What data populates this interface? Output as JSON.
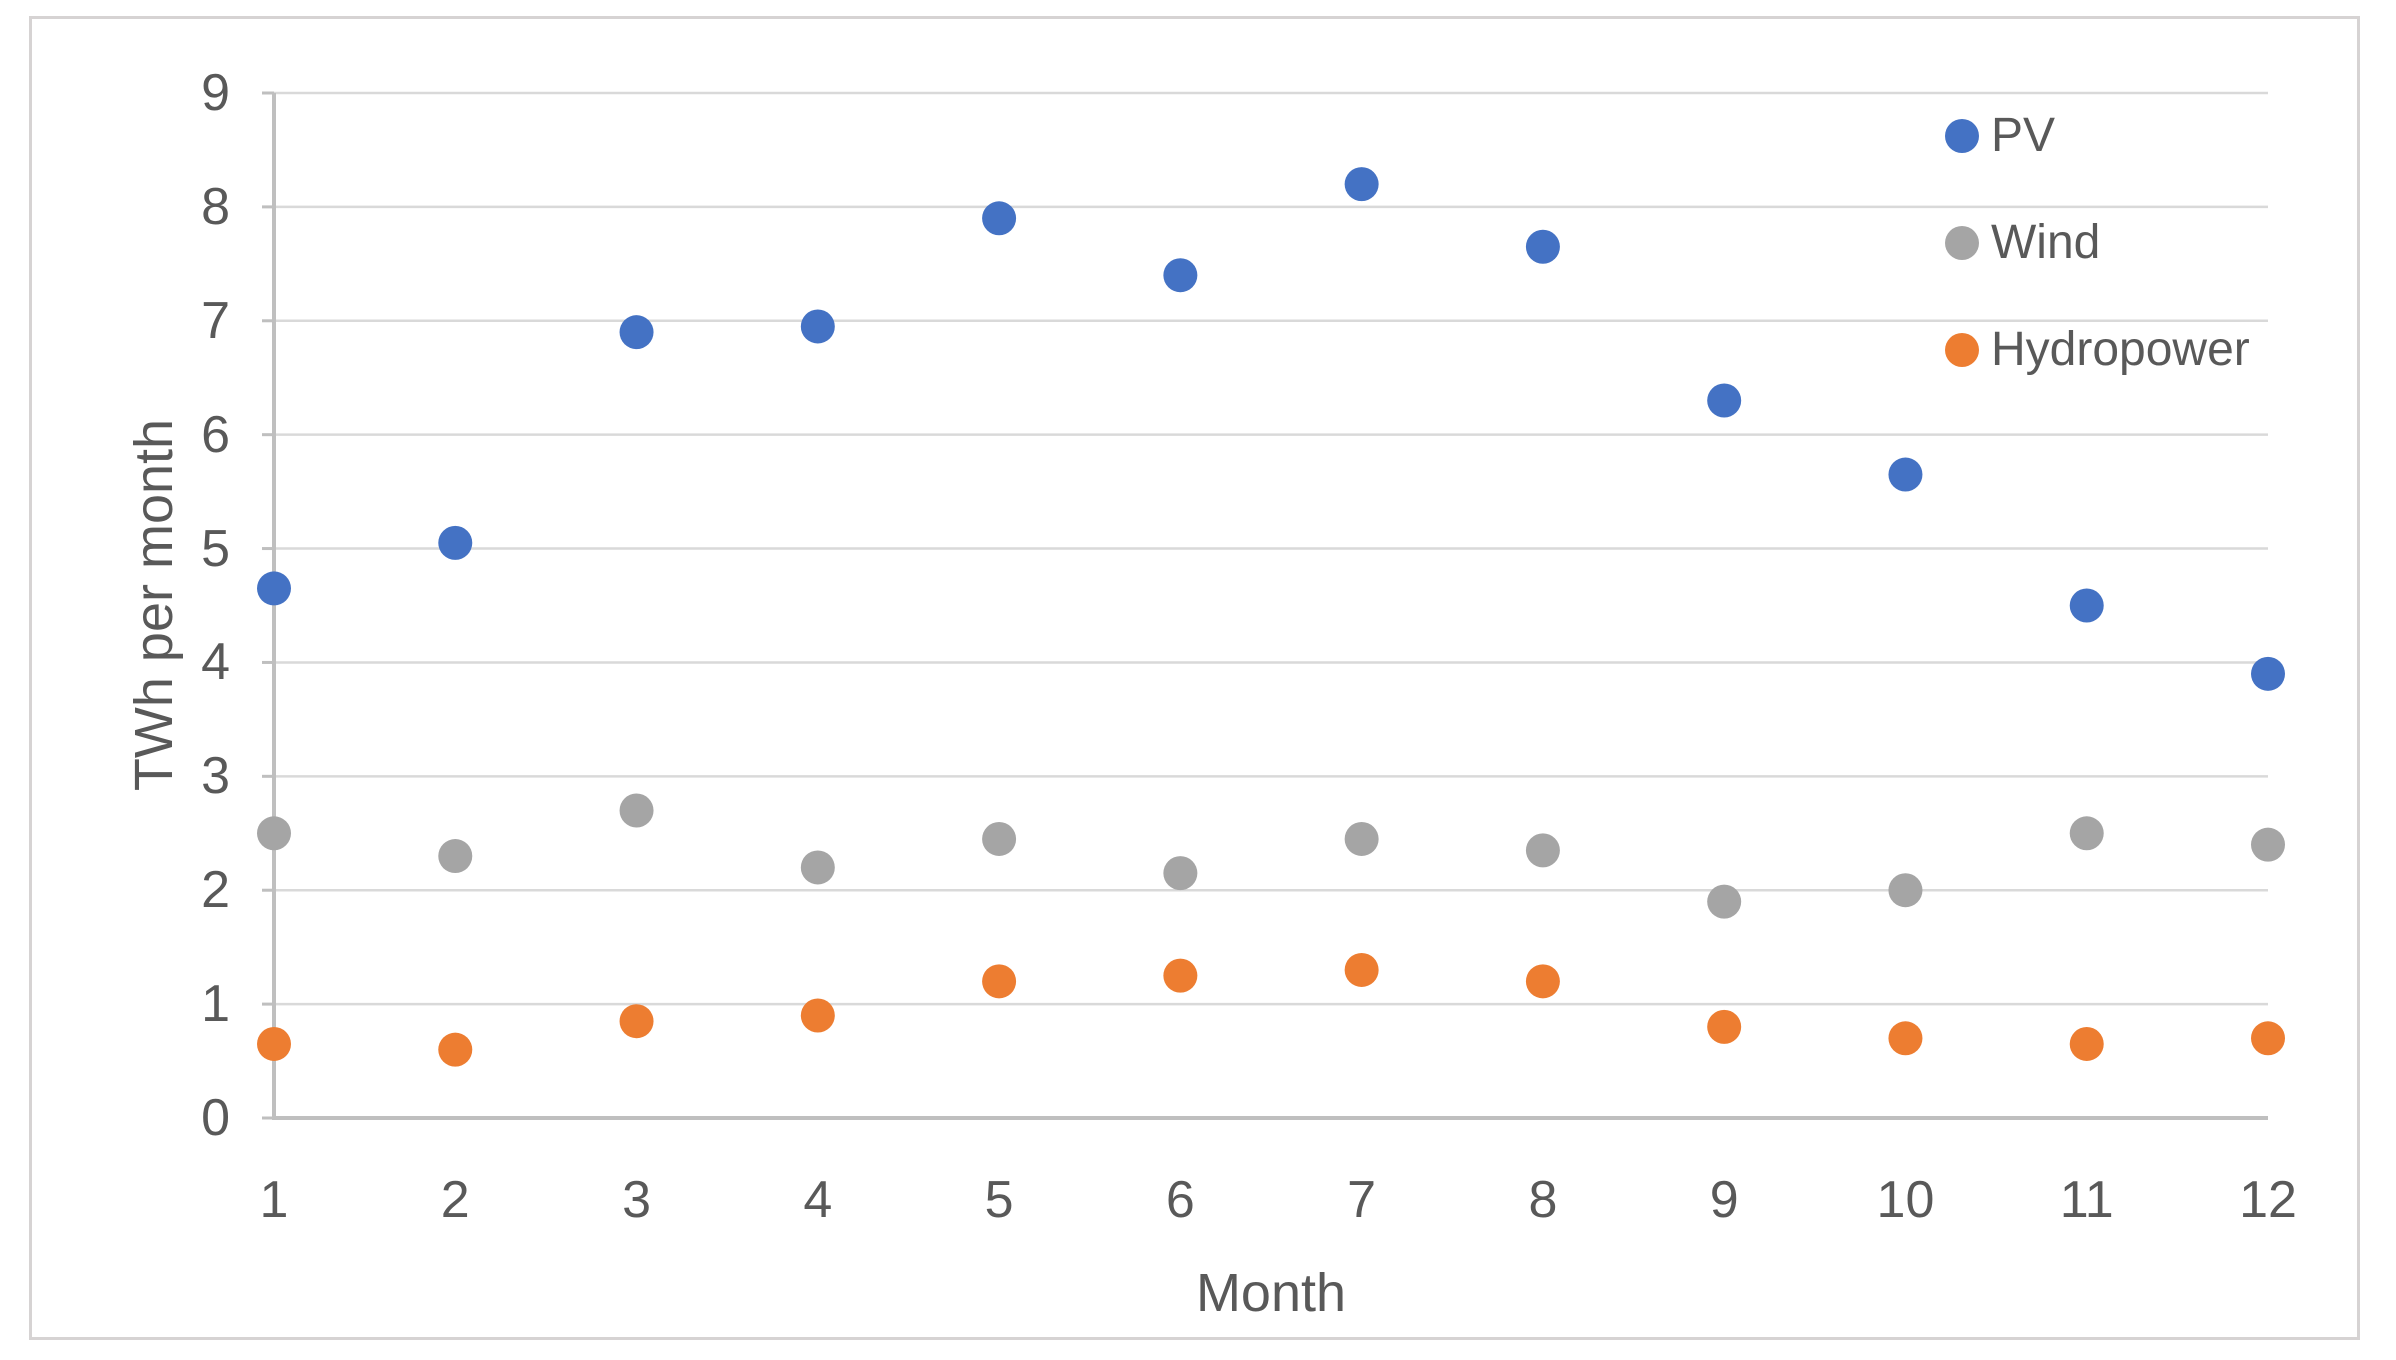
{
  "axes": {
    "x_title": "Month",
    "y_title": "TWh per month"
  },
  "legend": {
    "items": [
      {
        "label": "PV"
      },
      {
        "label": "Wind"
      },
      {
        "label": "Hydropower"
      }
    ]
  },
  "chart_data": {
    "type": "scatter",
    "title": "",
    "xlabel": "Month",
    "ylabel": "TWh per month",
    "x": [
      1,
      2,
      3,
      4,
      5,
      6,
      7,
      8,
      9,
      10,
      11,
      12
    ],
    "series": [
      {
        "name": "PV",
        "color": "#4472C4",
        "values": [
          4.65,
          5.05,
          6.9,
          6.95,
          7.9,
          7.4,
          8.2,
          7.65,
          6.3,
          5.65,
          4.5,
          3.9
        ]
      },
      {
        "name": "Wind",
        "color": "#A5A5A5",
        "values": [
          2.5,
          2.3,
          2.7,
          2.2,
          2.45,
          2.15,
          2.45,
          2.35,
          1.9,
          2.0,
          2.5,
          2.4
        ]
      },
      {
        "name": "Hydropower",
        "color": "#ED7D31",
        "values": [
          0.65,
          0.6,
          0.85,
          0.9,
          1.2,
          1.25,
          1.3,
          1.2,
          0.8,
          0.7,
          0.65,
          0.7
        ]
      }
    ],
    "xlim": [
      1,
      12
    ],
    "ylim": [
      0,
      9
    ],
    "x_ticks": [
      1,
      2,
      3,
      4,
      5,
      6,
      7,
      8,
      9,
      10,
      11,
      12
    ],
    "y_ticks": [
      0,
      1,
      2,
      3,
      4,
      5,
      6,
      7,
      8,
      9
    ],
    "grid": true,
    "gridline_color": "#D9D9D9",
    "axis_line_color": "#BFBFBF",
    "text_color": "#595959",
    "legend_position": "top-right"
  }
}
